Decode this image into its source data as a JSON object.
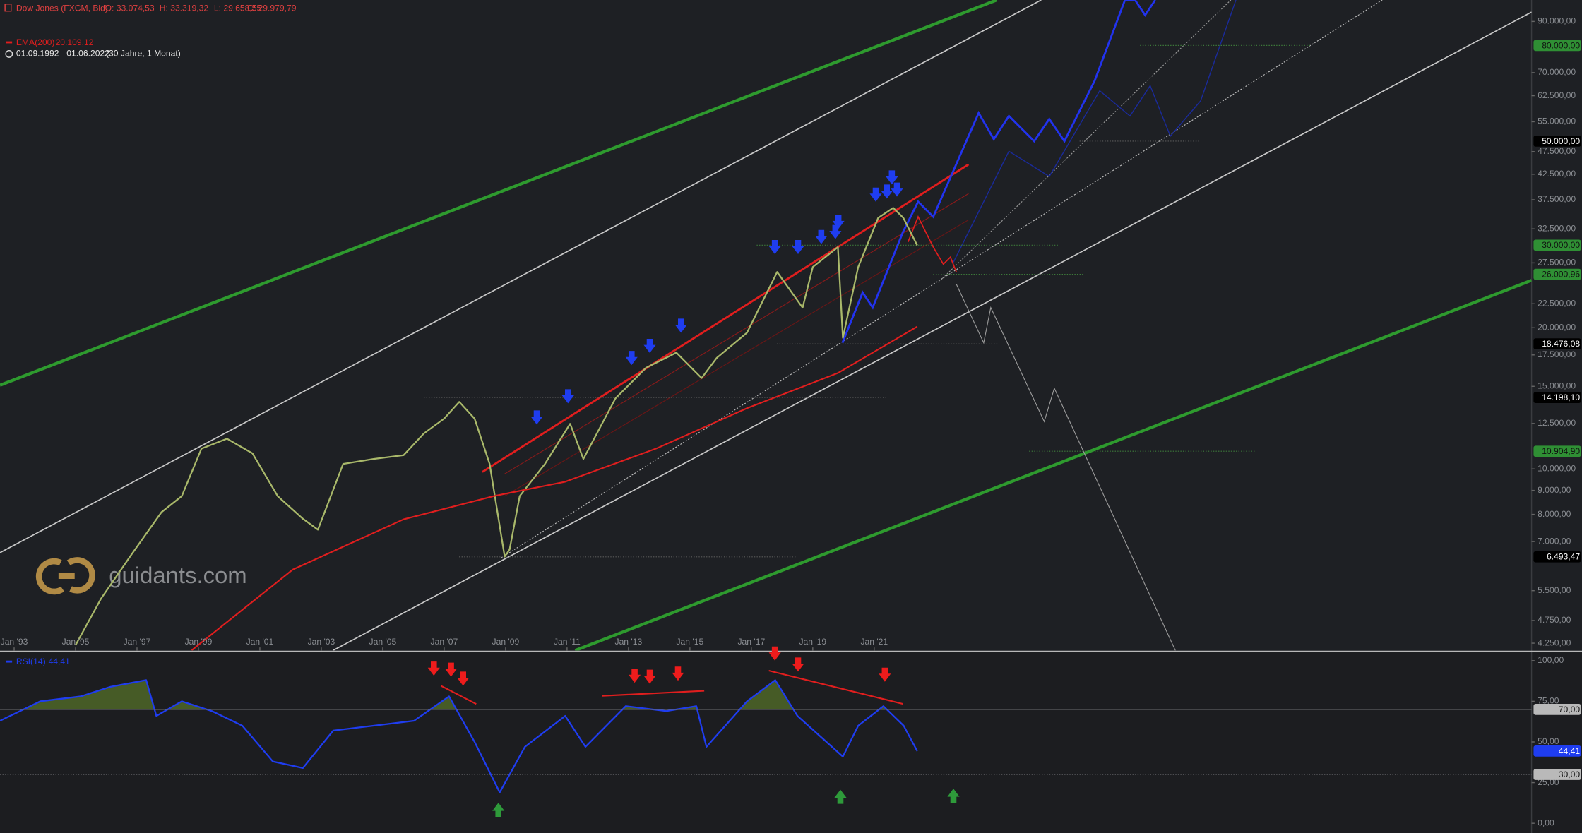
{
  "header": {
    "ohlc": [
      "O: 33.074,53",
      "H: 33.319,32",
      "L: 29.658,55",
      "C: 29.979,79"
    ],
    "range": "01.09.1992 - 01.06.2022",
    "span": "(30 Jahre, 1 Monat)"
  },
  "watermark": "guidants.com",
  "chart_data": [
    {
      "type": "line",
      "log_y": true,
      "xlim": [
        1992.54,
        2042.4
      ],
      "ylim": [
        4100,
        100000
      ],
      "xticks": [
        {
          "value": 1993,
          "label": "Jan '93"
        },
        {
          "value": 1995,
          "label": "Jan '95"
        },
        {
          "value": 1997,
          "label": "Jan '97"
        },
        {
          "value": 1999,
          "label": "Jan '99"
        },
        {
          "value": 2001,
          "label": "Jan '01"
        },
        {
          "value": 2003,
          "label": "Jan '03"
        },
        {
          "value": 2005,
          "label": "Jan '05"
        },
        {
          "value": 2007,
          "label": "Jan '07"
        },
        {
          "value": 2009,
          "label": "Jan '09"
        },
        {
          "value": 2011,
          "label": "Jan '11"
        },
        {
          "value": 2013,
          "label": "Jan '13"
        },
        {
          "value": 2015,
          "label": "Jan '15"
        },
        {
          "value": 2017,
          "label": "Jan '17"
        },
        {
          "value": 2019,
          "label": "Jan '19"
        },
        {
          "value": 2021,
          "label": "Jan '21"
        }
      ],
      "yticks": [
        {
          "value": 4250,
          "label": "4.250,00"
        },
        {
          "value": 4750,
          "label": "4.750,00"
        },
        {
          "value": 5500,
          "label": "5.500,00"
        },
        {
          "value": 7000,
          "label": "7.000,00"
        },
        {
          "value": 8000,
          "label": "8.000,00"
        },
        {
          "value": 9000,
          "label": "9.000,00"
        },
        {
          "value": 10000,
          "label": "10.000,00"
        },
        {
          "value": 12500,
          "label": "12.500,00"
        },
        {
          "value": 15000,
          "label": "15.000,00"
        },
        {
          "value": 17500,
          "label": "17.500,00"
        },
        {
          "value": 20000,
          "label": "20.000,00"
        },
        {
          "value": 22500,
          "label": "22.500,00"
        },
        {
          "value": 27500,
          "label": "27.500,00"
        },
        {
          "value": 32500,
          "label": "32.500,00"
        },
        {
          "value": 37500,
          "label": "37.500,00"
        },
        {
          "value": 42500,
          "label": "42.500,00"
        },
        {
          "value": 47500,
          "label": "47.500,00"
        },
        {
          "value": 55000,
          "label": "55.000,00"
        },
        {
          "value": 62500,
          "label": "62.500,00"
        },
        {
          "value": 70000,
          "label": "70.000,00"
        },
        {
          "value": 90000,
          "label": "90.000,00"
        }
      ],
      "levels": [
        {
          "value": 80000,
          "label": "80.000,00",
          "color": "#2f8f34"
        },
        {
          "value": 50000,
          "label": "50.000,00",
          "color": "#000000"
        },
        {
          "value": 30000,
          "label": "30.000,00",
          "color": "#2f8f34"
        },
        {
          "value": 26000.96,
          "label": "26.000,96",
          "color": "#2f8f34"
        },
        {
          "value": 18476.08,
          "label": "18.476,08",
          "color": "#000000"
        },
        {
          "value": 14198.1,
          "label": "14.198,10",
          "color": "#000000"
        },
        {
          "value": 10904.9,
          "label": "10.904,90",
          "color": "#2f8f34"
        },
        {
          "value": 6493.47,
          "label": "6.493,47",
          "color": "#000000"
        }
      ],
      "series": [
        {
          "name": "Dow Jones (FXCM, Bid)",
          "color": "#a9b86a",
          "x": [
            1995.0,
            1995.83,
            1996.8,
            1997.8,
            1998.46,
            1999.1,
            1999.93,
            2000.76,
            2001.58,
            2002.4,
            2002.89,
            2003.71,
            2004.7,
            2005.68,
            2006.34,
            2007.0,
            2007.49,
            2007.99,
            2008.48,
            2008.97,
            2009.13,
            2009.46,
            2010.28,
            2011.1,
            2011.53,
            2012.58,
            2013.57,
            2014.56,
            2015.38,
            2015.87,
            2016.86,
            2017.84,
            2018.67,
            2019.0,
            2019.82,
            2019.98,
            2020.48,
            2021.13,
            2021.62,
            2021.95,
            2022.4
          ],
          "values": [
            4210,
            5290,
            6540,
            8090,
            8750,
            11050,
            11600,
            10790,
            8750,
            7830,
            7420,
            10250,
            10500,
            10700,
            11900,
            12800,
            13900,
            12800,
            10250,
            6500,
            6730,
            8750,
            10250,
            12480,
            10500,
            14150,
            16430,
            17700,
            15620,
            17240,
            19520,
            26300,
            22070,
            26950,
            29700,
            19030,
            26950,
            34290,
            36040,
            34290,
            29980
          ]
        },
        {
          "name": "EMA(200)",
          "color": "#e01e1e",
          "last_label": "20.109,12",
          "x": [
            1998.78,
            2002.07,
            2005.68,
            2008.64,
            2010.94,
            2013.9,
            2016.86,
            2019.82,
            2022.4
          ],
          "values": [
            4105,
            6100,
            7810,
            8760,
            9390,
            11050,
            13470,
            16010,
            20109.12
          ]
        }
      ]
    },
    {
      "type": "line",
      "xlim": [
        1992.54,
        2042.4
      ],
      "ylim": [
        -6,
        105
      ],
      "yticks": [
        {
          "value": 0,
          "label": "0,00"
        },
        {
          "value": 25,
          "label": "25,00"
        },
        {
          "value": 50,
          "label": "50,00"
        },
        {
          "value": 75,
          "label": "75,00"
        },
        {
          "value": 100,
          "label": "100,00"
        }
      ],
      "levels": [
        {
          "value": 70,
          "label": "70,00",
          "fill": "#4e6628"
        },
        {
          "value": 30,
          "label": "30,00"
        }
      ],
      "series": [
        {
          "name": "RSI(14)",
          "color": "#1f3df0",
          "last_label": "44,41",
          "x": [
            1992.54,
            1993.85,
            1995.17,
            1996.15,
            1997.3,
            1997.63,
            1998.46,
            1999.44,
            2000.43,
            2001.42,
            2002.4,
            2003.39,
            2004.7,
            2006.02,
            2007.16,
            2007.99,
            2008.81,
            2009.63,
            2010.94,
            2011.6,
            2012.91,
            2014.23,
            2015.21,
            2015.54,
            2016.86,
            2017.78,
            2018.5,
            2019.98,
            2020.48,
            2021.3,
            2021.96,
            2022.4
          ],
          "values": [
            63,
            75,
            78,
            84,
            88,
            66,
            75,
            69,
            60,
            38,
            34,
            57,
            60,
            63,
            78,
            50,
            19,
            47,
            66,
            47,
            72,
            69,
            72,
            47,
            75,
            88,
            66,
            41,
            60,
            72,
            60,
            44.41
          ]
        }
      ]
    }
  ]
}
